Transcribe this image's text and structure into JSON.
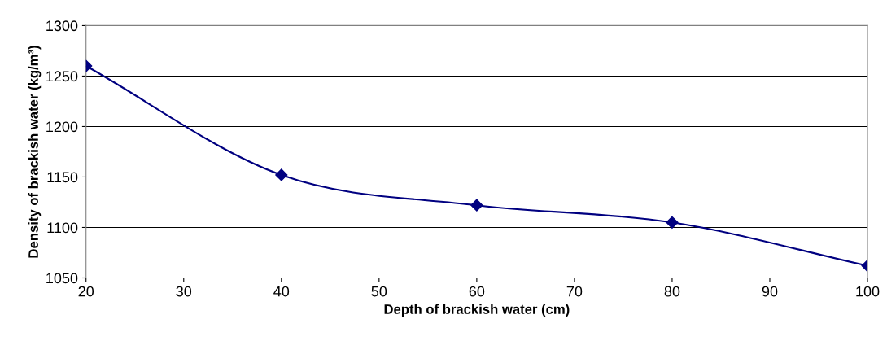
{
  "chart_data": {
    "type": "line",
    "xlabel": "Depth of brackish water (cm)",
    "ylabel": "Density of brackish water (kg/m³)",
    "x": [
      20,
      40,
      60,
      80,
      100
    ],
    "series": [
      {
        "color": "#000080",
        "values": [
          1260,
          1152,
          1122,
          1105,
          1062
        ]
      }
    ],
    "xlim": [
      20,
      100
    ],
    "xticks": [
      20,
      30,
      40,
      50,
      60,
      70,
      80,
      90,
      100
    ],
    "ylim": [
      1050,
      1300
    ],
    "yticks": [
      1050,
      1100,
      1150,
      1200,
      1250,
      1300
    ],
    "grid": "y",
    "marker": "diamond",
    "line_style": "solid"
  }
}
